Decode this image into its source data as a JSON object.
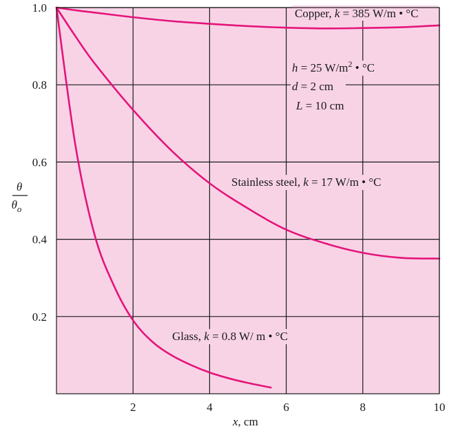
{
  "chart_data": {
    "type": "line",
    "xlabel": "x, cm",
    "ylabel": "θ/θo",
    "xlim": [
      0,
      10
    ],
    "ylim": [
      0,
      1.0
    ],
    "grid": true,
    "x_ticks": [
      "2",
      "4",
      "6",
      "8",
      "10"
    ],
    "y_ticks": [
      "0.2",
      "0.4",
      "0.6",
      "0.8",
      "1.0"
    ],
    "plot_background": "#f8d3e6",
    "line_color": "#e4147a",
    "series": [
      {
        "name": "Copper, k = 385 W/m • °C",
        "x": [
          0,
          0.5,
          1,
          2,
          3,
          4,
          5,
          6,
          7,
          8,
          9,
          10
        ],
        "y": [
          1.0,
          0.993,
          0.987,
          0.975,
          0.965,
          0.958,
          0.952,
          0.948,
          0.946,
          0.947,
          0.949,
          0.954
        ]
      },
      {
        "name": "Stainless steel, k = 17 W/m • °C",
        "x": [
          0,
          0.5,
          1,
          2,
          3,
          4,
          5,
          6,
          7,
          8,
          9,
          10
        ],
        "y": [
          1.0,
          0.925,
          0.855,
          0.735,
          0.63,
          0.545,
          0.48,
          0.425,
          0.39,
          0.365,
          0.352,
          0.35
        ]
      },
      {
        "name": "Glass, k = 0.8 W/ m • °C",
        "x": [
          0,
          0.5,
          1,
          1.5,
          2,
          2.5,
          3,
          3.5,
          4,
          4.5,
          5,
          5.6
        ],
        "y": [
          1.0,
          0.64,
          0.41,
          0.28,
          0.19,
          0.135,
          0.1,
          0.075,
          0.055,
          0.04,
          0.028,
          0.016
        ]
      }
    ],
    "annotations": {
      "copper": {
        "prefix": "Copper, ",
        "var": "k",
        "rest": " = 385 W/m • °C"
      },
      "steel": {
        "prefix": "Stainless steel, ",
        "var": "k",
        "rest": " = 17 W/m • °C"
      },
      "glass": {
        "prefix": "Glass, ",
        "var": "k",
        "rest": " = 0.8 W/ m • °C"
      },
      "params": {
        "h": {
          "var": "h",
          "rest": " = 25 W/m",
          "sup": "2",
          "tail": " • °C"
        },
        "d": {
          "var": "d",
          "rest": " = 2 cm"
        },
        "L": {
          "var": "L",
          "rest": " = 10 cm"
        }
      }
    },
    "axis_labels": {
      "x": {
        "var": "x",
        "rest": ", cm"
      },
      "y": {
        "num": "θ",
        "den": "θ",
        "den_sub": "o"
      }
    }
  }
}
